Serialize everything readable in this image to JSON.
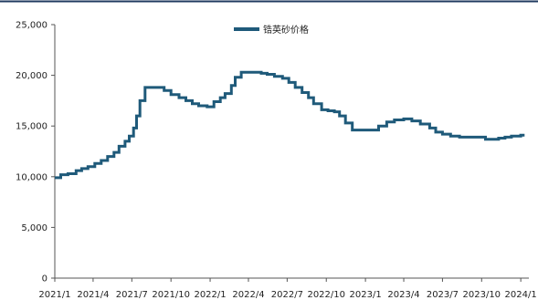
{
  "chart_data": {
    "type": "line",
    "title": "",
    "xlabel": "",
    "ylabel": "",
    "ylim": [
      0,
      25000
    ],
    "y_ticks": [
      "0",
      "5,000",
      "10,000",
      "15,000",
      "20,000",
      "25,000"
    ],
    "y_tick_values": [
      0,
      5000,
      10000,
      15000,
      20000,
      25000
    ],
    "x_ticks": [
      "2021/1",
      "2021/4",
      "2021/7",
      "2021/10",
      "2022/1",
      "2022/4",
      "2022/7",
      "2022/10",
      "2023/1",
      "2023/4",
      "2023/7",
      "2023/10",
      "2024/1"
    ],
    "x_tick_dates": [
      "2021-01",
      "2021-04",
      "2021-07",
      "2021-10",
      "2022-01",
      "2022-04",
      "2022-07",
      "2022-10",
      "2023-01",
      "2023-04",
      "2023-07",
      "2023-10",
      "2024-01"
    ],
    "legend_position": "top-center",
    "grid": false,
    "series": [
      {
        "name": "锆英砂价格",
        "color": "#1f5a7a",
        "x": [
          "2021-01-01",
          "2021-01-15",
          "2021-02-01",
          "2021-02-20",
          "2021-03-05",
          "2021-03-20",
          "2021-04-05",
          "2021-04-20",
          "2021-05-05",
          "2021-05-20",
          "2021-06-01",
          "2021-06-15",
          "2021-06-25",
          "2021-07-05",
          "2021-07-12",
          "2021-07-20",
          "2021-08-01",
          "2021-09-01",
          "2021-09-15",
          "2021-10-01",
          "2021-10-20",
          "2021-11-05",
          "2021-11-20",
          "2021-12-05",
          "2021-12-25",
          "2022-01-10",
          "2022-01-25",
          "2022-02-05",
          "2022-02-20",
          "2022-03-01",
          "2022-03-15",
          "2022-04-01",
          "2022-04-15",
          "2022-05-01",
          "2022-05-15",
          "2022-06-01",
          "2022-06-20",
          "2022-07-05",
          "2022-07-20",
          "2022-08-05",
          "2022-08-20",
          "2022-09-01",
          "2022-09-20",
          "2022-10-05",
          "2022-10-20",
          "2022-11-01",
          "2022-11-15",
          "2022-12-01",
          "2022-12-15",
          "2023-01-01",
          "2023-01-15",
          "2023-02-01",
          "2023-02-20",
          "2023-03-10",
          "2023-04-01",
          "2023-04-20",
          "2023-05-10",
          "2023-06-01",
          "2023-06-15",
          "2023-07-01",
          "2023-07-20",
          "2023-08-10",
          "2023-09-01",
          "2023-09-20",
          "2023-10-10",
          "2023-10-25",
          "2023-11-10",
          "2023-11-25",
          "2023-12-10",
          "2024-01-01",
          "2024-01-10"
        ],
        "values": [
          9900,
          10200,
          10300,
          10600,
          10800,
          11000,
          11300,
          11600,
          12000,
          12400,
          13000,
          13500,
          14000,
          14800,
          16000,
          17500,
          18800,
          18800,
          18500,
          18100,
          17800,
          17500,
          17200,
          17000,
          16900,
          17400,
          17800,
          18200,
          19000,
          19800,
          20300,
          20300,
          20300,
          20200,
          20100,
          19900,
          19700,
          19300,
          18800,
          18300,
          17800,
          17200,
          16600,
          16500,
          16400,
          16000,
          15300,
          14600,
          14600,
          14600,
          14600,
          15000,
          15400,
          15600,
          15700,
          15500,
          15200,
          14800,
          14400,
          14200,
          14000,
          13900,
          13900,
          13900,
          13700,
          13700,
          13800,
          13900,
          14000,
          14100,
          14100
        ]
      }
    ]
  }
}
